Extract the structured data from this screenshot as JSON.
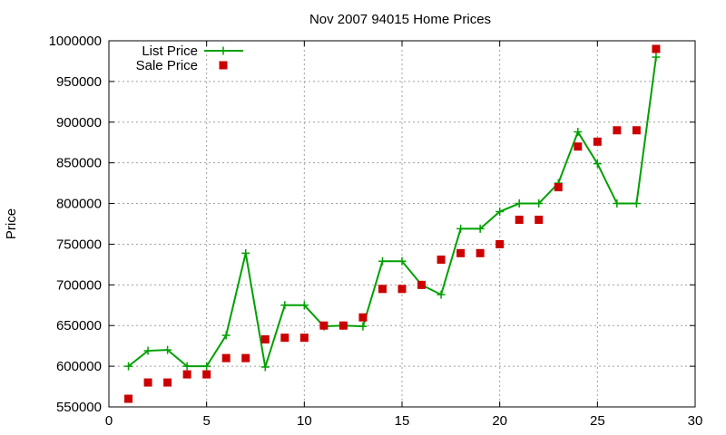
{
  "chart_data": {
    "type": "line",
    "title": "Nov 2007 94015 Home Prices",
    "xlabel": "",
    "ylabel": "Price",
    "xlim": [
      0,
      30
    ],
    "ylim": [
      550000,
      1000000
    ],
    "xticks": [
      0,
      5,
      10,
      15,
      20,
      25,
      30
    ],
    "yticks": [
      550000,
      600000,
      650000,
      700000,
      750000,
      800000,
      850000,
      900000,
      950000,
      1000000
    ],
    "grid": true,
    "legend_position": "top-left",
    "series": [
      {
        "name": "List Price",
        "style": "line+cross",
        "color": "#00a000",
        "x": [
          1,
          2,
          3,
          4,
          5,
          6,
          7,
          8,
          9,
          10,
          11,
          12,
          13,
          14,
          15,
          16,
          17,
          18,
          19,
          20,
          21,
          22,
          23,
          24,
          25,
          26,
          27,
          28
        ],
        "y": [
          600000,
          619000,
          620000,
          600000,
          600000,
          638000,
          739000,
          599000,
          675000,
          675000,
          649000,
          650000,
          649000,
          729000,
          729000,
          700000,
          688000,
          769000,
          769000,
          790000,
          800000,
          800000,
          825000,
          888000,
          849000,
          800000,
          800000,
          980000
        ]
      },
      {
        "name": "Sale Price",
        "style": "square",
        "color": "#cc0000",
        "x": [
          1,
          2,
          3,
          4,
          5,
          6,
          7,
          8,
          9,
          10,
          11,
          12,
          13,
          14,
          15,
          16,
          17,
          18,
          19,
          20,
          21,
          22,
          23,
          24,
          25,
          26,
          27,
          28
        ],
        "y": [
          560000,
          580000,
          580000,
          590000,
          590000,
          610000,
          610000,
          633000,
          635000,
          635000,
          650000,
          650000,
          660000,
          695000,
          695000,
          700000,
          731000,
          739000,
          739000,
          750000,
          780000,
          780000,
          820000,
          870000,
          876000,
          890000,
          890000,
          990000
        ]
      }
    ]
  }
}
